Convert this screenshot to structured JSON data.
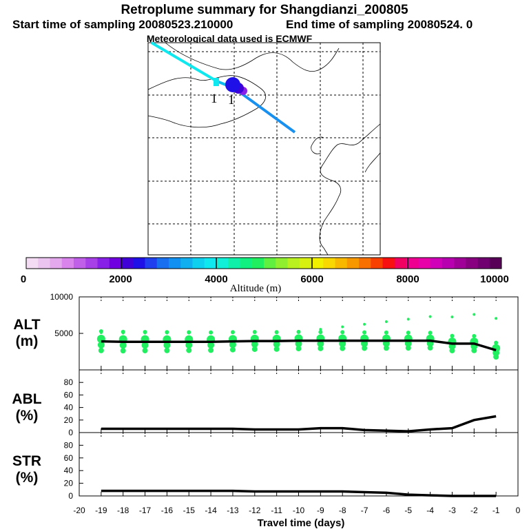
{
  "header": {
    "title": "Retroplume summary for Shangdianzi_200805",
    "start": "Start time of sampling 20080523.210000",
    "end": "End time of sampling 20080524.     0",
    "met": "Meteorological data used is ECMWF"
  },
  "map": {
    "label_1": "1"
  },
  "colorbar": {
    "title": "Altitude (m)",
    "ticks": [
      "0",
      "2000",
      "4000",
      "6000",
      "8000",
      "10000"
    ],
    "colors": [
      "#f4dcf4",
      "#ecc4f0",
      "#e4a8ec",
      "#d884ec",
      "#c060e8",
      "#a840e8",
      "#8820e8",
      "#7000e0",
      "#4000d8",
      "#2010e8",
      "#2040f0",
      "#1870f0",
      "#1090f0",
      "#10b0f0",
      "#10d0f0",
      "#10e8f0",
      "#10f0d8",
      "#10f0a8",
      "#10f080",
      "#20f060",
      "#60f040",
      "#90f030",
      "#b8f020",
      "#d8f010",
      "#f0f000",
      "#f8d800",
      "#f8b800",
      "#f89800",
      "#f87000",
      "#f84000",
      "#f81010",
      "#f00060",
      "#f00090",
      "#e800a8",
      "#d000b8",
      "#b800b0",
      "#a00098",
      "#880080",
      "#700070",
      "#580058"
    ]
  },
  "chart_data": [
    {
      "type": "line",
      "name": "ALT",
      "ylabel_line1": "ALT",
      "ylabel_line2": "(m)",
      "ylim": [
        0,
        10000
      ],
      "y_ticks": [
        "5000",
        "10000"
      ],
      "x": [
        -19,
        -18,
        -17,
        -16,
        -15,
        -14,
        -13,
        -12,
        -11,
        -10,
        -9,
        -8,
        -7,
        -6,
        -5,
        -4,
        -3,
        -2,
        -1
      ],
      "values": [
        3900,
        3850,
        3850,
        3850,
        3850,
        3850,
        3900,
        3950,
        3950,
        4000,
        4000,
        4000,
        4000,
        4000,
        4000,
        4000,
        3600,
        3600,
        2700
      ],
      "scatter_color": "#20f060"
    },
    {
      "type": "line",
      "name": "ABL",
      "ylabel_line1": "ABL",
      "ylabel_line2": "(%)",
      "ylim": [
        0,
        100
      ],
      "y_ticks": [
        "0",
        "20",
        "40",
        "60",
        "80"
      ],
      "x": [
        -19,
        -18,
        -17,
        -16,
        -15,
        -14,
        -13,
        -12,
        -11,
        -10,
        -9,
        -8,
        -7,
        -6,
        -5,
        -4,
        -3,
        -2,
        -1
      ],
      "values": [
        6,
        6,
        6,
        6,
        6,
        6,
        6,
        5,
        5,
        5,
        7,
        7,
        4,
        3,
        2,
        5,
        7,
        20,
        26
      ]
    },
    {
      "type": "line",
      "name": "STR",
      "ylabel_line1": "STR",
      "ylabel_line2": "(%)",
      "ylim": [
        0,
        100
      ],
      "y_ticks": [
        "0",
        "20",
        "40",
        "60",
        "80"
      ],
      "x": [
        -19,
        -18,
        -17,
        -16,
        -15,
        -14,
        -13,
        -12,
        -11,
        -10,
        -9,
        -8,
        -7,
        -6,
        -5,
        -4,
        -3,
        -2,
        -1
      ],
      "values": [
        8,
        8,
        8,
        8,
        8,
        8,
        8,
        7,
        7,
        7,
        7,
        7,
        6,
        5,
        2,
        1,
        0,
        0,
        0
      ],
      "x_ticks": [
        "-20",
        "-19",
        "-18",
        "-17",
        "-16",
        "-15",
        "-14",
        "-13",
        "-12",
        "-11",
        "-10",
        "-9",
        "-8",
        "-7",
        "-6",
        "-5",
        "-4",
        "-3",
        "-2",
        "-1",
        "0"
      ],
      "xlabel": "Travel time (days)",
      "xlim": [
        -20,
        0
      ]
    }
  ]
}
